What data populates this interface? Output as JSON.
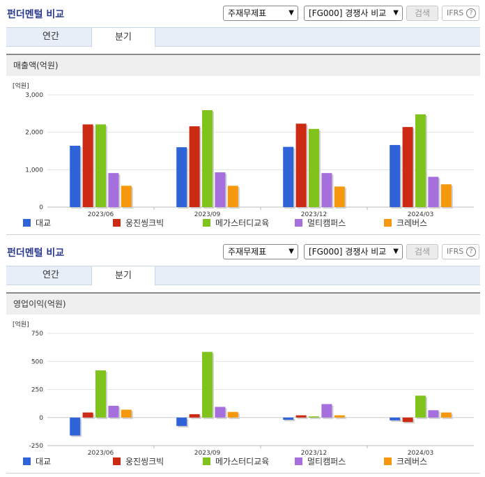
{
  "panels": [
    {
      "title": "펀더멘털 비교",
      "select_statement": "주재무제표",
      "select_compare": "[FG000] 경쟁사 비교",
      "search_label": "검색",
      "ifrs_label": "IFRS",
      "ifrs_help": "?",
      "tabs": [
        {
          "label": "연간"
        },
        {
          "label": "분기"
        }
      ],
      "active_tab": "분기",
      "section_title": "매출액(억원)"
    },
    {
      "title": "펀더멘털 비교",
      "select_statement": "주재무제표",
      "select_compare": "[FG000] 경쟁사 비교",
      "search_label": "검색",
      "ifrs_label": "IFRS",
      "ifrs_help": "?",
      "tabs": [
        {
          "label": "연간"
        },
        {
          "label": "분기"
        }
      ],
      "active_tab": "분기",
      "section_title": "영업이익(억원)"
    }
  ],
  "colors": {
    "대교": "#2f64d8",
    "웅진씽크빅": "#cc2a12",
    "메가스터디교육": "#7fc31c",
    "멀티캠퍼스": "#a56fdd",
    "크레버스": "#f5980e"
  },
  "chart_data": [
    {
      "type": "bar",
      "unit_label": "[억원]",
      "categories": [
        "2023/06",
        "2023/09",
        "2023/12",
        "2024/03"
      ],
      "ylim": [
        0,
        3000
      ],
      "yticks": [
        0,
        1000,
        2000,
        3000
      ],
      "ytick_labels": [
        "0",
        "1,000",
        "2,000",
        "3,000"
      ],
      "grid": true,
      "legend_position": "bottom",
      "series": [
        {
          "name": "대교",
          "values": [
            1640,
            1600,
            1610,
            1660
          ]
        },
        {
          "name": "웅진씽크빅",
          "values": [
            2210,
            2160,
            2230,
            2140
          ]
        },
        {
          "name": "메가스터디교육",
          "values": [
            2210,
            2590,
            2090,
            2480
          ]
        },
        {
          "name": "멀티캠퍼스",
          "values": [
            910,
            930,
            910,
            810
          ]
        },
        {
          "name": "크레버스",
          "values": [
            570,
            570,
            550,
            610
          ]
        }
      ]
    },
    {
      "type": "bar",
      "unit_label": "[억원]",
      "categories": [
        "2023/06",
        "2023/09",
        "2023/12",
        "2024/03"
      ],
      "ylim": [
        -250,
        750
      ],
      "yticks": [
        -250,
        0,
        250,
        500,
        750
      ],
      "ytick_labels": [
        "-250",
        "0",
        "250",
        "500",
        "750"
      ],
      "grid": true,
      "legend_position": "bottom",
      "series": [
        {
          "name": "대교",
          "values": [
            -160,
            -75,
            -20,
            -25
          ]
        },
        {
          "name": "웅진씽크빅",
          "values": [
            45,
            30,
            20,
            -40
          ]
        },
        {
          "name": "메가스터디교육",
          "values": [
            420,
            585,
            10,
            195
          ]
        },
        {
          "name": "멀티캠퍼스",
          "values": [
            105,
            95,
            120,
            65
          ]
        },
        {
          "name": "크레버스",
          "values": [
            70,
            50,
            20,
            45
          ]
        }
      ]
    }
  ]
}
